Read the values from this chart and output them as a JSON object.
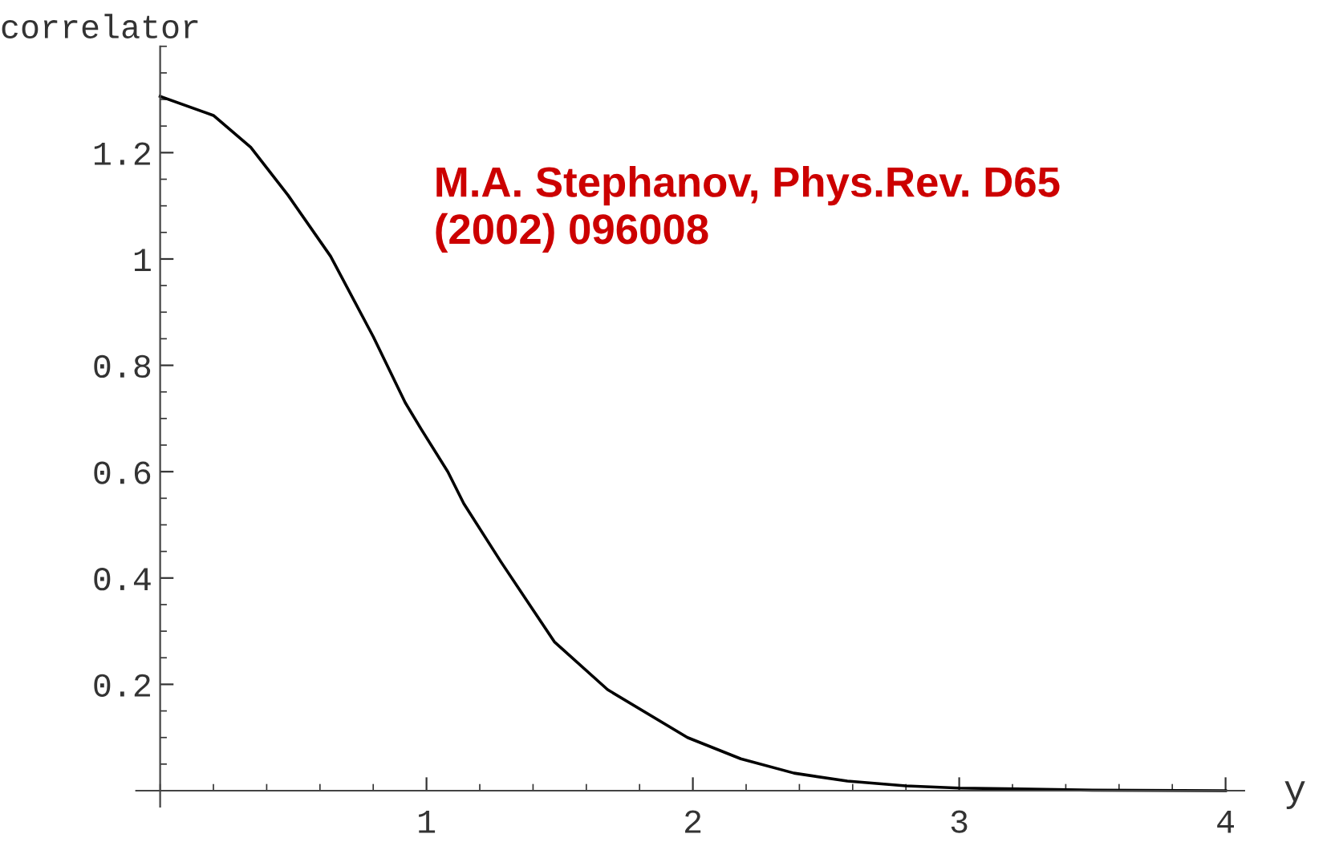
{
  "chart_data": {
    "type": "line",
    "xlabel": "y",
    "ylabel": "correlator",
    "annotations": [
      "M.A. Stephanov, Phys.Rev. D65\n(2002) 096008"
    ],
    "x": [
      0,
      0.2,
      0.34,
      0.48,
      0.64,
      0.8,
      0.92,
      0.98,
      1.08,
      1.14,
      1.28,
      1.48,
      1.68,
      1.98,
      2.18,
      2.38,
      2.58,
      2.8,
      3.0,
      3.5,
      4.0
    ],
    "series": [
      {
        "color": "#000000",
        "values": [
          1.306,
          1.27,
          1.21,
          1.12,
          1.005,
          0.854,
          0.73,
          0.68,
          0.6,
          0.54,
          0.43,
          0.28,
          0.19,
          0.1,
          0.06,
          0.033,
          0.018,
          0.009,
          0.005,
          0.001,
          0.0
        ]
      }
    ],
    "xlim": [
      -0.09,
      4.07
    ],
    "ylim": [
      -0.03,
      1.4
    ],
    "xticks": [
      1,
      2,
      3,
      4
    ],
    "yticks": [
      0.2,
      0.4,
      0.6,
      0.8,
      1,
      1.2
    ],
    "grid": false,
    "legend": false,
    "marker": "none",
    "line_style": "solid"
  }
}
